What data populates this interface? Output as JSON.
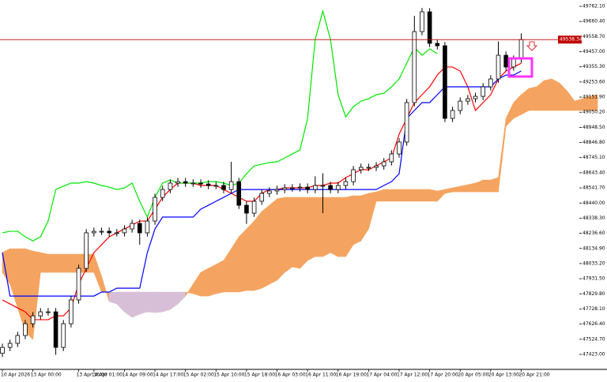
{
  "chart_data": {
    "type": "candlestick",
    "categories": [
      "10 Apr 2026",
      null,
      null,
      null,
      "13 Apr 00:00",
      null,
      null,
      null,
      null,
      null,
      "13 Apr 16:00",
      null,
      "14 Apr 01:00",
      null,
      null,
      null,
      "14 Apr 09:00",
      null,
      null,
      null,
      "14 Apr 17:00",
      null,
      null,
      null,
      "15 Apr 02:00",
      null,
      null,
      null,
      "15 Apr 10:00",
      null,
      null,
      null,
      "15 Apr 18:00",
      null,
      null,
      null,
      "16 Apr 03:00",
      null,
      null,
      null,
      "16 Apr 11:00",
      null,
      null,
      null,
      "16 Apr 19:00",
      null,
      null,
      null,
      "17 Apr 04:00",
      null,
      null,
      null,
      "17 Apr 12:00",
      null,
      null,
      null,
      "17 Apr 20:00",
      null,
      null,
      null,
      "20 Apr 05:00",
      null,
      null,
      null,
      "20 Apr 13:00",
      null,
      null,
      null,
      "20 Apr 21:00",
      null,
      null,
      null,
      null,
      null,
      null,
      null,
      null,
      null,
      null
    ],
    "open": [
      47430,
      47470,
      47497,
      47550,
      47629,
      47682,
      47709,
      47709,
      47470,
      47629,
      47789,
      48001,
      48240,
      48250,
      48250,
      48240,
      48240,
      48266,
      48303,
      48240,
      48319,
      48478,
      48531,
      48574,
      48584,
      48574,
      48574,
      48568,
      48558,
      48558,
      48531,
      48584,
      48425,
      48372,
      48452,
      48505,
      48521,
      48531,
      48542,
      48542,
      48547,
      48531,
      48558,
      48558,
      48531,
      48558,
      48584,
      48664,
      48680,
      48680,
      48690,
      48717,
      48770,
      48850,
      49115,
      49592,
      49725,
      49513,
      49497,
      49009,
      49062,
      49125,
      49141,
      49157,
      49221,
      49274,
      49433,
      49354,
      49407,
      null,
      null,
      null,
      null,
      null,
      null,
      null,
      null,
      null,
      null
    ],
    "high": [
      47495,
      47522,
      47575,
      47654,
      47707,
      47734,
      47734,
      47734,
      47654,
      47814,
      48026,
      48265,
      48275,
      48275,
      48275,
      48265,
      48291,
      48328,
      48328,
      48344,
      48503,
      48556,
      48599,
      48609,
      48609,
      48599,
      48599,
      48593,
      48583,
      48583,
      48717,
      48609,
      48450,
      48477,
      48530,
      48546,
      48556,
      48567,
      48567,
      48572,
      48572,
      48620,
      48640,
      48583,
      48583,
      48609,
      48689,
      48705,
      48705,
      48715,
      48742,
      48795,
      48875,
      49140,
      49698,
      49751,
      49750,
      49538,
      49522,
      49087,
      49150,
      49166,
      49182,
      49246,
      49299,
      49526,
      49458,
      49432,
      49580,
      null,
      null,
      null,
      null,
      null,
      null,
      null,
      null,
      null,
      null
    ],
    "low": [
      47405,
      47445,
      47472,
      47525,
      47604,
      47657,
      47684,
      47420,
      47445,
      47604,
      47764,
      47976,
      48215,
      48225,
      48215,
      48215,
      48215,
      48241,
      48160,
      48215,
      48294,
      48453,
      48506,
      48549,
      48549,
      48549,
      48543,
      48533,
      48533,
      48506,
      48506,
      48400,
      48300,
      48347,
      48427,
      48480,
      48496,
      48506,
      48517,
      48517,
      48506,
      48506,
      48372,
      48506,
      48506,
      48533,
      48559,
      48639,
      48655,
      48655,
      48665,
      48692,
      48745,
      48825,
      49090,
      49567,
      49488,
      49472,
      48984,
      48984,
      49037,
      49100,
      49116,
      49132,
      49196,
      49249,
      49329,
      49329,
      49382,
      null,
      null,
      null,
      null,
      null,
      null,
      null,
      null,
      null,
      null
    ],
    "close": [
      47470,
      47497,
      47550,
      47629,
      47682,
      47709,
      47709,
      47470,
      47629,
      47789,
      48001,
      48240,
      48250,
      48250,
      48240,
      48240,
      48266,
      48303,
      48240,
      48319,
      48478,
      48531,
      48574,
      48584,
      48574,
      48574,
      48568,
      48558,
      48558,
      48531,
      48584,
      48425,
      48372,
      48452,
      48505,
      48521,
      48531,
      48542,
      48542,
      48547,
      48531,
      48558,
      48558,
      48531,
      48558,
      48584,
      48664,
      48680,
      48680,
      48690,
      48717,
      48770,
      48850,
      49115,
      49592,
      49725,
      49513,
      49497,
      49009,
      49062,
      49125,
      49141,
      49157,
      49221,
      49274,
      49433,
      49354,
      49407,
      49538.34,
      null,
      null,
      null,
      null,
      null,
      null,
      null,
      null,
      null,
      null
    ],
    "up_color": "#ffffff",
    "down_color": "#000000",
    "wick_color": "#000000",
    "series": [
      {
        "color": "#ff0000",
        "values": [
          47789,
          47762,
          47735,
          47709,
          47656,
          47656,
          47656,
          47682,
          47682,
          47735,
          47895,
          48001,
          48107,
          48160,
          48213,
          48240,
          48266,
          48292,
          48319,
          48319,
          48399,
          48478,
          48531,
          48574,
          48574,
          48574,
          48558,
          48558,
          48558,
          48531,
          48505,
          48478,
          48452,
          48452,
          48505,
          48531,
          48531,
          48542,
          48542,
          48542,
          48542,
          48558,
          48558,
          48574,
          48574,
          48611,
          48637,
          48664,
          48664,
          48690,
          48717,
          48743,
          48903,
          49009,
          49115,
          49168,
          49221,
          49300,
          49354,
          49354,
          49327,
          49221,
          49062,
          49115,
          49168,
          49274,
          49327,
          49354,
          49380,
          null,
          null,
          null,
          null,
          null,
          null,
          null,
          null,
          null,
          null
        ]
      },
      {
        "color": "#0000ff",
        "values": [
          48107,
          47815,
          47815,
          47815,
          47815,
          47815,
          47815,
          47815,
          47815,
          47815,
          47815,
          47815,
          47815,
          47842,
          47842,
          47868,
          47868,
          47868,
          47868,
          48107,
          48266,
          48346,
          48346,
          48346,
          48346,
          48346,
          48399,
          48425,
          48452,
          48478,
          48505,
          48531,
          48531,
          48531,
          48531,
          48531,
          48531,
          48531,
          48531,
          48531,
          48531,
          48531,
          48531,
          48531,
          48531,
          48531,
          48531,
          48531,
          48531,
          48531,
          48558,
          48584,
          48637,
          49009,
          49062,
          49115,
          49115,
          49168,
          49221,
          49221,
          49221,
          49221,
          49221,
          49221,
          49221,
          49274,
          49300,
          49300,
          49327,
          null,
          null,
          null,
          null,
          null,
          null,
          null,
          null,
          null,
          null
        ]
      },
      {
        "color": "#00e600",
        "values": [
          48240,
          48250,
          48250,
          48213,
          48186,
          48213,
          48319,
          48531,
          48553,
          48574,
          48574,
          48584,
          48574,
          48558,
          48547,
          48531,
          48542,
          48574,
          48452,
          48346,
          48478,
          48574,
          48595,
          48574,
          48574,
          48574,
          48574,
          48584,
          48584,
          48574,
          48558,
          48574,
          48637,
          48690,
          48701,
          48712,
          48717,
          48743,
          48770,
          48797,
          49009,
          49539,
          49730,
          49539,
          49168,
          49019,
          49088,
          49125,
          49141,
          49168,
          49178,
          49221,
          49274,
          49380,
          49486,
          49433,
          49476,
          49444,
          null,
          null,
          null,
          null,
          null,
          null,
          null,
          null,
          null,
          null,
          null,
          null,
          null,
          null,
          null,
          null,
          null,
          null,
          null,
          null,
          null
        ]
      }
    ],
    "cloud": {
      "up_color": "#f4a460",
      "down_color": "#d8bfd8",
      "span_a": [
        48107,
        48133,
        48133,
        48133,
        48117,
        48107,
        48096,
        48096,
        48096,
        48096,
        48096,
        48096,
        48096,
        47948,
        47778,
        47762,
        47709,
        47672,
        47693,
        47709,
        47704,
        47709,
        47725,
        47762,
        47815,
        47895,
        47974,
        48001,
        48027,
        48054,
        48133,
        48213,
        48266,
        48319,
        48383,
        48425,
        48468,
        48478,
        48478,
        48478,
        48478,
        48478,
        48478,
        48478,
        48478,
        48478,
        48489,
        48489,
        48505,
        48515,
        48531,
        48531,
        48531,
        48531,
        48531,
        48531,
        48531,
        48521,
        48531,
        48542,
        48553,
        48563,
        48574,
        48595,
        48595,
        48611,
        49009,
        49115,
        49168,
        49210,
        49221,
        49263,
        49274,
        49247,
        49194,
        49125,
        49141,
        49157,
        49168
      ],
      "span_b": [
        47974,
        47895,
        47736,
        47576,
        47523,
        47974,
        47974,
        47974,
        47974,
        47974,
        47974,
        47974,
        47974,
        47842,
        47842,
        47842,
        47842,
        47842,
        47842,
        47842,
        47842,
        47842,
        47842,
        47842,
        47842,
        47831,
        47815,
        47815,
        47831,
        47842,
        47842,
        47842,
        47852,
        47852,
        47868,
        47895,
        47921,
        47974,
        48011,
        48001,
        48054,
        48080,
        48080,
        48107,
        48080,
        48080,
        48160,
        48186,
        48266,
        48452,
        48452,
        48452,
        48452,
        48452,
        48452,
        48452,
        48452,
        48452,
        48505,
        48515,
        48515,
        48515,
        48515,
        48515,
        48515,
        48515,
        48956,
        49009,
        49035,
        49062,
        49062,
        49062,
        49062,
        49062,
        49062,
        49062,
        49062,
        49062,
        49062
      ]
    },
    "last_price": 49538.34,
    "last_price_color": "#c00000",
    "ylim": [
      47322.2,
      49804.5
    ],
    "yticks": [
      {
        "value": 49762.1,
        "label": "49762.10"
      },
      {
        "value": 49660.4,
        "label": "49660.40"
      },
      {
        "value": 49558.7,
        "label": "49558.70"
      },
      {
        "value": 49457.0,
        "label": "49457.00"
      },
      {
        "value": 49355.3,
        "label": "49355.30"
      },
      {
        "value": 49253.6,
        "label": "49253.60"
      },
      {
        "value": 49151.9,
        "label": "49151.90"
      },
      {
        "value": 49050.2,
        "label": "49050.20"
      },
      {
        "value": 48948.5,
        "label": "48948.50"
      },
      {
        "value": 48846.8,
        "label": "48846.80"
      },
      {
        "value": 48745.1,
        "label": "48745.10"
      },
      {
        "value": 48643.4,
        "label": "48643.40"
      },
      {
        "value": 48541.7,
        "label": "48541.70"
      },
      {
        "value": 48440.0,
        "label": "48440.00"
      },
      {
        "value": 48338.3,
        "label": "48338.30"
      },
      {
        "value": 48236.6,
        "label": "48236.60"
      },
      {
        "value": 48134.9,
        "label": "48134.90"
      },
      {
        "value": 48033.2,
        "label": "48033.20"
      },
      {
        "value": 47931.5,
        "label": "47931.50"
      },
      {
        "value": 47829.8,
        "label": "47829.80"
      },
      {
        "value": 47728.1,
        "label": "47728.10"
      },
      {
        "value": 47626.4,
        "label": "47626.40"
      },
      {
        "value": 47524.7,
        "label": "47524.70"
      },
      {
        "value": 47423.0,
        "label": "47423.00"
      }
    ],
    "grid": false
  }
}
